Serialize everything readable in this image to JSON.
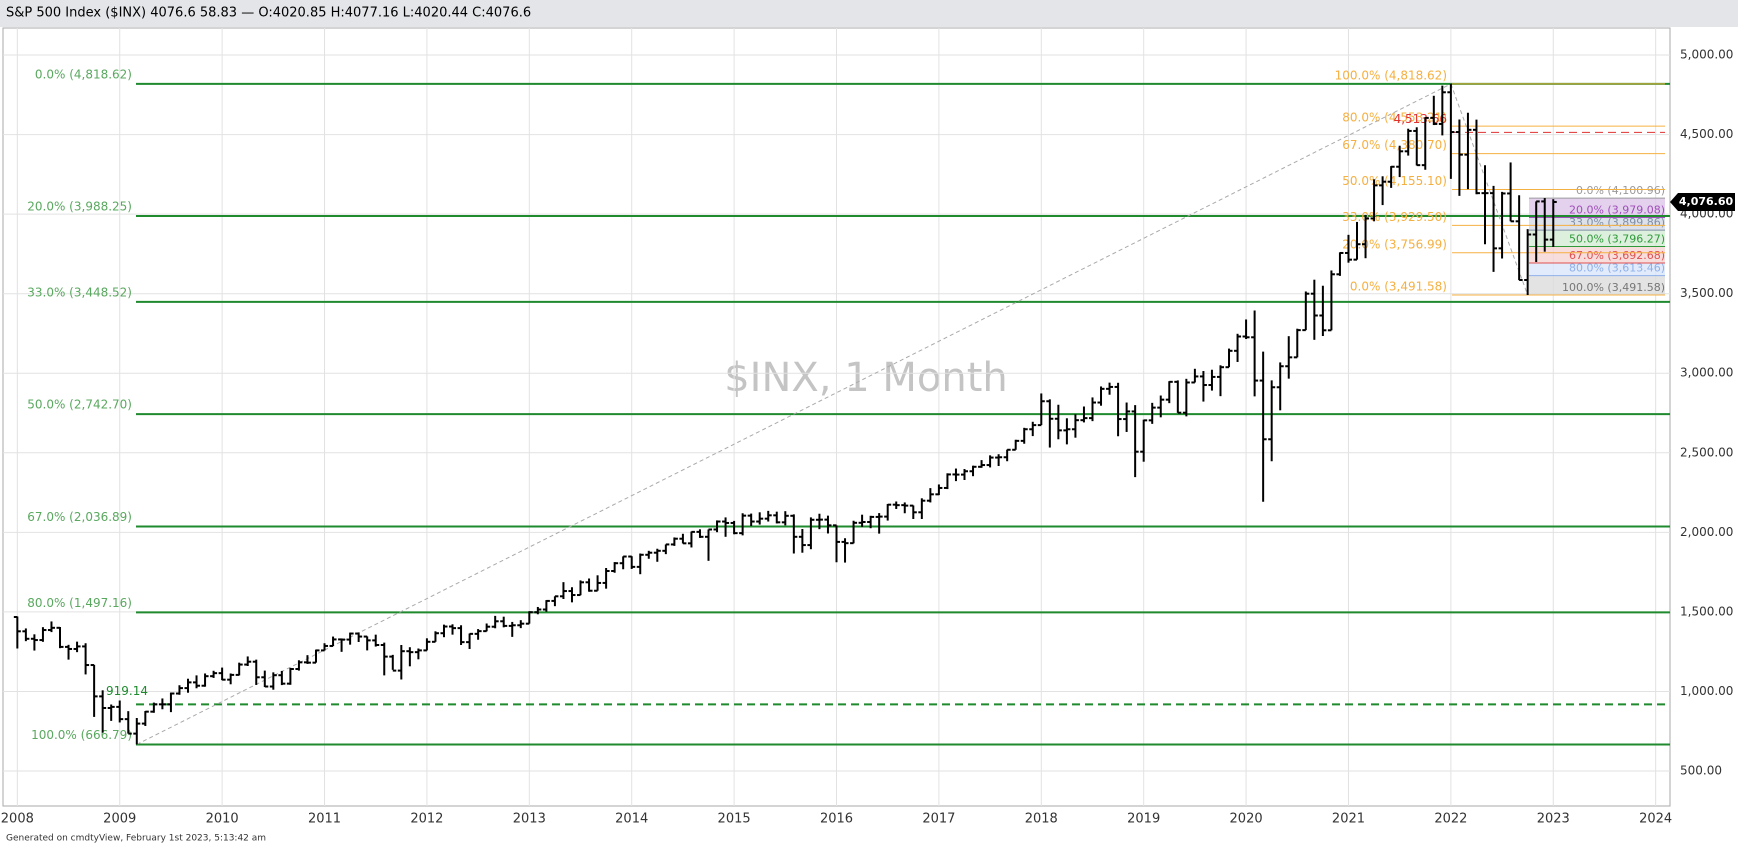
{
  "chart_data": {
    "type": "ohlc",
    "title": "S&P 500 Index ($INX) 4076.6 58.83 — O:4020.85 H:4077.16 L:4020.44 C:4076.6",
    "watermark": "$INX, 1 Month",
    "footer": "Generated on cmdtyView, February 1st 2023, 5:13:42 am",
    "color": "#000000",
    "grid": true,
    "x": [
      "2008-01",
      "2008-02",
      "2008-03",
      "2008-04",
      "2008-05",
      "2008-06",
      "2008-07",
      "2008-08",
      "2008-09",
      "2008-10",
      "2008-11",
      "2008-12",
      "2009-01",
      "2009-02",
      "2009-03",
      "2009-04",
      "2009-05",
      "2009-06",
      "2009-07",
      "2009-08",
      "2009-09",
      "2009-10",
      "2009-11",
      "2009-12",
      "2010-01",
      "2010-02",
      "2010-03",
      "2010-04",
      "2010-05",
      "2010-06",
      "2010-07",
      "2010-08",
      "2010-09",
      "2010-10",
      "2010-11",
      "2010-12",
      "2011-01",
      "2011-02",
      "2011-03",
      "2011-04",
      "2011-05",
      "2011-06",
      "2011-07",
      "2011-08",
      "2011-09",
      "2011-10",
      "2011-11",
      "2011-12",
      "2012-01",
      "2012-02",
      "2012-03",
      "2012-04",
      "2012-05",
      "2012-06",
      "2012-07",
      "2012-08",
      "2012-09",
      "2012-10",
      "2012-11",
      "2012-12",
      "2013-01",
      "2013-02",
      "2013-03",
      "2013-04",
      "2013-05",
      "2013-06",
      "2013-07",
      "2013-08",
      "2013-09",
      "2013-10",
      "2013-11",
      "2013-12",
      "2014-01",
      "2014-02",
      "2014-03",
      "2014-04",
      "2014-05",
      "2014-06",
      "2014-07",
      "2014-08",
      "2014-09",
      "2014-10",
      "2014-11",
      "2014-12",
      "2015-01",
      "2015-02",
      "2015-03",
      "2015-04",
      "2015-05",
      "2015-06",
      "2015-07",
      "2015-08",
      "2015-09",
      "2015-10",
      "2015-11",
      "2015-12",
      "2016-01",
      "2016-02",
      "2016-03",
      "2016-04",
      "2016-05",
      "2016-06",
      "2016-07",
      "2016-08",
      "2016-09",
      "2016-10",
      "2016-11",
      "2016-12",
      "2017-01",
      "2017-02",
      "2017-03",
      "2017-04",
      "2017-05",
      "2017-06",
      "2017-07",
      "2017-08",
      "2017-09",
      "2017-10",
      "2017-11",
      "2017-12",
      "2018-01",
      "2018-02",
      "2018-03",
      "2018-04",
      "2018-05",
      "2018-06",
      "2018-07",
      "2018-08",
      "2018-09",
      "2018-10",
      "2018-11",
      "2018-12",
      "2019-01",
      "2019-02",
      "2019-03",
      "2019-04",
      "2019-05",
      "2019-06",
      "2019-07",
      "2019-08",
      "2019-09",
      "2019-10",
      "2019-11",
      "2019-12",
      "2020-01",
      "2020-02",
      "2020-03",
      "2020-04",
      "2020-05",
      "2020-06",
      "2020-07",
      "2020-08",
      "2020-09",
      "2020-10",
      "2020-11",
      "2020-12",
      "2021-01",
      "2021-02",
      "2021-03",
      "2021-04",
      "2021-05",
      "2021-06",
      "2021-07",
      "2021-08",
      "2021-09",
      "2021-10",
      "2021-11",
      "2021-12",
      "2022-01",
      "2022-02",
      "2022-03",
      "2022-04",
      "2022-05",
      "2022-06",
      "2022-07",
      "2022-08",
      "2022-09",
      "2022-10",
      "2022-11",
      "2022-12",
      "2023-01"
    ],
    "open": [
      1468,
      1378,
      1331,
      1323,
      1386,
      1400,
      1280,
      1267,
      1283,
      1166,
      969,
      896,
      903,
      826,
      735,
      798,
      873,
      919,
      919,
      987,
      1021,
      1057,
      1036,
      1096,
      1115,
      1074,
      1104,
      1169,
      1187,
      1089,
      1031,
      1102,
      1049,
      1141,
      1183,
      1181,
      1258,
      1286,
      1327,
      1326,
      1364,
      1345,
      1321,
      1292,
      1219,
      1131,
      1253,
      1247,
      1258,
      1312,
      1366,
      1408,
      1398,
      1310,
      1362,
      1379,
      1407,
      1441,
      1412,
      1416,
      1426,
      1498,
      1515,
      1569,
      1598,
      1631,
      1606,
      1686,
      1633,
      1682,
      1757,
      1806,
      1848,
      1783,
      1859,
      1872,
      1884,
      1924,
      1960,
      1931,
      2003,
      1972,
      2018,
      2068,
      2059,
      1995,
      2105,
      2068,
      2086,
      2107,
      2063,
      2104,
      1972,
      1920,
      2079,
      2080,
      2044,
      1940,
      1932,
      2060,
      2065,
      2097,
      2099,
      2174,
      2171,
      2168,
      2126,
      2199,
      2239,
      2279,
      2364,
      2363,
      2384,
      2412,
      2423,
      2470,
      2472,
      2519,
      2575,
      2648,
      2674,
      2824,
      2714,
      2641,
      2648,
      2705,
      2718,
      2816,
      2902,
      2914,
      2712,
      2760,
      2507,
      2704,
      2784,
      2834,
      2946,
      2752,
      2942,
      2980,
      2926,
      2977,
      3038,
      3141,
      3231,
      3226,
      2954,
      2585,
      2912,
      3044,
      3100,
      3271,
      3500,
      3363,
      3270,
      3622,
      3756,
      3714,
      3811,
      3973,
      4181,
      4204,
      4298,
      4395,
      4523,
      4308,
      4605,
      4567,
      4766,
      4516,
      4374,
      4530,
      4132,
      4132,
      3785,
      4130,
      3955,
      3586,
      3872,
      4080,
      3840
    ],
    "high": [
      1471,
      1396,
      1359,
      1404,
      1440,
      1405,
      1293,
      1313,
      1303,
      1167,
      1007,
      918,
      943,
      876,
      833,
      877,
      930,
      956,
      993,
      1039,
      1080,
      1101,
      1113,
      1130,
      1150,
      1113,
      1181,
      1220,
      1200,
      1131,
      1120,
      1129,
      1148,
      1196,
      1228,
      1263,
      1303,
      1345,
      1333,
      1370,
      1371,
      1346,
      1357,
      1307,
      1230,
      1292,
      1278,
      1270,
      1334,
      1378,
      1420,
      1422,
      1416,
      1364,
      1392,
      1427,
      1475,
      1470,
      1437,
      1448,
      1504,
      1531,
      1574,
      1598,
      1687,
      1655,
      1698,
      1710,
      1730,
      1776,
      1813,
      1849,
      1850,
      1867,
      1884,
      1897,
      1924,
      1968,
      1991,
      2005,
      2019,
      2018,
      2075,
      2094,
      2072,
      2120,
      2118,
      2126,
      2135,
      2130,
      2133,
      2113,
      2021,
      2094,
      2117,
      2105,
      2044,
      1963,
      2073,
      2111,
      2104,
      2121,
      2178,
      2194,
      2188,
      2169,
      2214,
      2278,
      2301,
      2371,
      2401,
      2398,
      2419,
      2454,
      2484,
      2491,
      2520,
      2582,
      2657,
      2695,
      2873,
      2836,
      2802,
      2717,
      2742,
      2791,
      2848,
      2917,
      2941,
      2940,
      2816,
      2800,
      2708,
      2814,
      2860,
      2950,
      2955,
      2965,
      3028,
      3014,
      3022,
      3050,
      3155,
      3248,
      3338,
      3394,
      3136,
      2955,
      3068,
      3233,
      3280,
      3514,
      3588,
      3550,
      3646,
      3760,
      3870,
      3951,
      3995,
      4219,
      4238,
      4302,
      4430,
      4537,
      4546,
      4609,
      4744,
      4808,
      4818.62,
      4595,
      4637,
      4594,
      4307,
      4178,
      4140,
      4325,
      4119,
      3906,
      4080,
      4101,
      4094
    ],
    "low": [
      1270,
      1316,
      1257,
      1312,
      1373,
      1272,
      1200,
      1247,
      1107,
      840,
      741,
      815,
      805,
      735,
      667,
      783,
      866,
      888,
      870,
      979,
      992,
      1020,
      1030,
      1085,
      1071,
      1045,
      1101,
      1160,
      1041,
      1028,
      1011,
      1040,
      1042,
      1131,
      1173,
      1181,
      1257,
      1285,
      1249,
      1294,
      1311,
      1258,
      1282,
      1101,
      1136,
      1075,
      1158,
      1202,
      1258,
      1312,
      1341,
      1357,
      1292,
      1267,
      1325,
      1378,
      1397,
      1403,
      1343,
      1398,
      1426,
      1485,
      1501,
      1536,
      1581,
      1560,
      1605,
      1627,
      1633,
      1646,
      1746,
      1768,
      1770,
      1737,
      1834,
      1815,
      1863,
      1915,
      1930,
      1905,
      1965,
      1821,
      2001,
      1972,
      1988,
      1981,
      2040,
      2049,
      2068,
      2056,
      2044,
      1867,
      1872,
      1894,
      2020,
      1993,
      1812,
      1810,
      1931,
      2034,
      2026,
      1992,
      2074,
      2147,
      2120,
      2084,
      2084,
      2188,
      2234,
      2272,
      2322,
      2329,
      2353,
      2406,
      2408,
      2417,
      2447,
      2519,
      2557,
      2605,
      2674,
      2533,
      2585,
      2553,
      2595,
      2691,
      2699,
      2796,
      2865,
      2604,
      2631,
      2347,
      2444,
      2682,
      2723,
      2812,
      2751,
      2729,
      2942,
      2822,
      2891,
      2856,
      3038,
      3071,
      3215,
      2855,
      2192,
      2447,
      2767,
      2966,
      3100,
      3271,
      3210,
      3234,
      3270,
      3612,
      3695,
      3714,
      3723,
      3955,
      4057,
      4165,
      4233,
      4368,
      4306,
      4279,
      4560,
      4495,
      4222,
      4115,
      4157,
      4125,
      3811,
      3637,
      3721,
      3955,
      3585,
      3491.58,
      3699,
      3764,
      3794
    ],
    "close": [
      1378,
      1331,
      1323,
      1386,
      1400,
      1280,
      1267,
      1283,
      1166,
      969,
      896,
      903,
      826,
      735,
      798,
      873,
      919,
      919,
      987,
      1021,
      1057,
      1036,
      1096,
      1115,
      1074,
      1104,
      1169,
      1187,
      1089,
      1031,
      1102,
      1049,
      1141,
      1183,
      1181,
      1258,
      1286,
      1327,
      1326,
      1364,
      1345,
      1321,
      1292,
      1219,
      1131,
      1253,
      1247,
      1258,
      1312,
      1366,
      1408,
      1398,
      1310,
      1362,
      1379,
      1407,
      1441,
      1412,
      1416,
      1426,
      1498,
      1515,
      1569,
      1598,
      1631,
      1606,
      1686,
      1633,
      1682,
      1757,
      1806,
      1848,
      1783,
      1859,
      1872,
      1884,
      1924,
      1960,
      1931,
      2003,
      1972,
      2018,
      2068,
      2059,
      1995,
      2105,
      2068,
      2086,
      2107,
      2063,
      2104,
      1972,
      1920,
      2079,
      2080,
      2044,
      1940,
      1932,
      2060,
      2065,
      2097,
      2099,
      2174,
      2171,
      2168,
      2126,
      2199,
      2239,
      2279,
      2364,
      2363,
      2384,
      2412,
      2423,
      2470,
      2472,
      2519,
      2575,
      2648,
      2674,
      2824,
      2714,
      2641,
      2648,
      2705,
      2718,
      2816,
      2902,
      2914,
      2712,
      2760,
      2507,
      2704,
      2784,
      2834,
      2946,
      2752,
      2942,
      2980,
      2926,
      2977,
      3038,
      3141,
      3231,
      3226,
      2954,
      2585,
      2912,
      3044,
      3100,
      3271,
      3500,
      3363,
      3270,
      3622,
      3756,
      3714,
      3811,
      3973,
      4181,
      4204,
      4298,
      4395,
      4523,
      4308,
      4605,
      4567,
      4766,
      4516,
      4374,
      4530,
      4132,
      4132,
      3785,
      4130,
      3955,
      3586,
      3872,
      4080,
      3840,
      4076.6
    ],
    "xlim": [
      2007.86,
      2024.14
    ],
    "xticks": [
      2008,
      2009,
      2010,
      2011,
      2012,
      2013,
      2014,
      2015,
      2016,
      2017,
      2018,
      2019,
      2020,
      2021,
      2022,
      2023,
      2024
    ],
    "ylim": [
      280,
      5170
    ],
    "yticks": [
      {
        "value": 500,
        "label": "500.00"
      },
      {
        "value": 1000,
        "label": "1,000.00"
      },
      {
        "value": 1500,
        "label": "1,500.00"
      },
      {
        "value": 2000,
        "label": "2,000.00"
      },
      {
        "value": 2500,
        "label": "2,500.00"
      },
      {
        "value": 3000,
        "label": "3,000.00"
      },
      {
        "value": 3500,
        "label": "3,500.00"
      },
      {
        "value": 4000,
        "label": "4,000.00"
      },
      {
        "value": 4500,
        "label": "4,500.00"
      },
      {
        "value": 5000,
        "label": "5,000.00"
      }
    ],
    "last_price": {
      "value": 4076.6,
      "label": "4,076.60"
    },
    "fib_long": {
      "color": "#1f8a2e",
      "label_color": "#5aa85f",
      "levels": [
        {
          "value": 4818.62,
          "label": "0.0% (4,818.62)"
        },
        {
          "value": 3988.25,
          "label": "20.0% (3,988.25)"
        },
        {
          "value": 3448.52,
          "label": "33.0% (3,448.52)"
        },
        {
          "value": 2742.7,
          "label": "50.0% (2,742.70)"
        },
        {
          "value": 2036.89,
          "label": "67.0% (2,036.89)"
        },
        {
          "value": 1497.16,
          "label": "80.0% (1,497.16)"
        },
        {
          "value": 666.79,
          "label": "100.0% (666.79)"
        }
      ]
    },
    "fib_mid": {
      "color": "#f5b042",
      "levels": [
        {
          "value": 4818.62,
          "label": "100.0% (4,818.62)"
        },
        {
          "value": 4553.21,
          "label": "80.0% (4,553.21)"
        },
        {
          "value": 4380.7,
          "label": "67.0% (4,380.70)"
        },
        {
          "value": 4155.1,
          "label": "50.0% (4,155.10)"
        },
        {
          "value": 3929.5,
          "label": "33.0% (3,929.50)"
        },
        {
          "value": 3756.99,
          "label": "20.0% (3,756.99)"
        },
        {
          "value": 3491.58,
          "label": "0.0% (3,491.58)"
        }
      ]
    },
    "fib_short": {
      "levels": [
        {
          "value": 4100.96,
          "label": "0.0% (4,100.96)",
          "color": "#9a9a9a"
        },
        {
          "value": 3979.08,
          "label": "20.0% (3,979.08)",
          "color": "#a050b8"
        },
        {
          "value": 3899.86,
          "label": "33.0% (3,899.86)",
          "color": "#7f8fa6"
        },
        {
          "value": 3796.27,
          "label": "50.0% (3,796.27)",
          "color": "#2f9a3a"
        },
        {
          "value": 3692.68,
          "label": "67.0% (3,692.68)",
          "color": "#e05050"
        },
        {
          "value": 3613.46,
          "label": "80.0% (3,613.46)",
          "color": "#8fb0e8"
        },
        {
          "value": 3491.58,
          "label": "100.0% (3,491.58)",
          "color": "#777777"
        }
      ]
    },
    "hlines": [
      {
        "value": 919.14,
        "label": "919.14",
        "color": "#1f8a2e"
      },
      {
        "value": 4513.66,
        "label": "4,513.66",
        "color": "#e03030"
      }
    ]
  }
}
